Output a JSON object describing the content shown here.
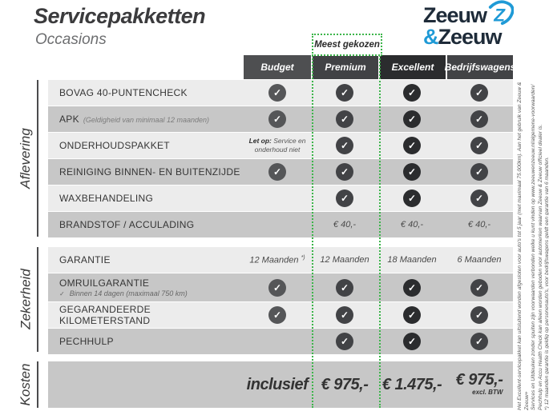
{
  "page": {
    "title": "Servicepakketten",
    "subtitle": "Occasions"
  },
  "logo": {
    "word1": "Zeeuw",
    "amp": "&",
    "word2": "Zeeuw",
    "navy": "#1e2b39",
    "blue": "#1f9ad6"
  },
  "badge": {
    "label": "Meest gekozen",
    "accent_color": "#3cb54a"
  },
  "table": {
    "columns": [
      {
        "label": "Budget",
        "header_color": "#4e4f51",
        "check_color": "#555658"
      },
      {
        "label": "Premium",
        "header_color": "#414245",
        "check_color": "#424346"
      },
      {
        "label": "Excellent",
        "header_color": "#2b2c2e",
        "check_color": "#2b2c2e"
      },
      {
        "label": "Bedrijfswagens",
        "header_color": "#424346",
        "check_color": "#424346"
      }
    ],
    "groups": [
      {
        "name": "Aflevering",
        "rows": [
          {
            "label": "BOVAG 40-PUNTENCHECK",
            "cells": [
              "check",
              "check",
              "check",
              "check"
            ]
          },
          {
            "label": "APK",
            "sublabel": "(Geldigheid van minimaal 12 maanden)",
            "cells": [
              "check",
              "check",
              "check",
              "check"
            ]
          },
          {
            "label": "ONDERHOUDSPAKKET",
            "cells": [
              {
                "note_bold": "Let op:",
                "note": "Service en onderhoud niet"
              },
              "check",
              "check",
              "check"
            ]
          },
          {
            "label": "REINIGING BINNEN- EN BUITENZIJDE",
            "cells": [
              "check",
              "check",
              "check",
              "check"
            ]
          },
          {
            "label": "WAXBEHANDELING",
            "cells": [
              "",
              "check",
              "check",
              "check"
            ]
          },
          {
            "label": "BRANDSTOF / ACCULADING",
            "cells": [
              "",
              {
                "text": "€ 40,-"
              },
              {
                "text": "€ 40,-"
              },
              {
                "text": "€ 40,-"
              }
            ]
          }
        ]
      },
      {
        "name": "Zekerheid",
        "rows": [
          {
            "label": "GARANTIE",
            "cells": [
              {
                "text": "12 Maanden",
                "sup": "*)"
              },
              {
                "text": "12 Maanden"
              },
              {
                "text": "18 Maanden"
              },
              {
                "text": "6 Maanden"
              }
            ]
          },
          {
            "label": "OMRUILGARANTIE",
            "subcheck": "Binnen 14 dagen (maximaal 750 km)",
            "tall": true,
            "cells": [
              "check",
              "check",
              "check",
              "check"
            ]
          },
          {
            "label": "GEGARANDEERDE KILOMETERSTAND",
            "cells": [
              "check",
              "check",
              "check",
              "check"
            ]
          },
          {
            "label": "PECHHULP",
            "cells": [
              "",
              "check",
              "check",
              "check"
            ]
          }
        ]
      }
    ],
    "kosten": {
      "name": "Kosten",
      "values": [
        {
          "text": "inclusief"
        },
        {
          "text": "€ 975,-"
        },
        {
          "text": "€ 1.475,-"
        },
        {
          "text": "€ 975,-",
          "note": "excl. BTW"
        }
      ]
    }
  },
  "disclaimer": {
    "lines": [
      "Het Excellent-servicepakket kan uitsluitend worden afgesloten voor auto's tot 5 jaar (met maximaal 75.000km). Aan het gebruik van Zeeuw & Zeeuw+",
      "Services en Uitdeuken zonder spuiten zijn voorwaarden verbonden welke u kunt vinden op www.zeeuwenzeeuw.nl/algemene-voorwaarden/",
      "Pechhulp en Accu Health Check kan alleen worden geboden voor automerken waarvan Zeeuw & Zeeuw officieel dealer is.",
      "*) 12 maanden garantie is geldig op personenauto's, voor bedrijfswagens geldt een garantie van 6 maanden."
    ]
  }
}
